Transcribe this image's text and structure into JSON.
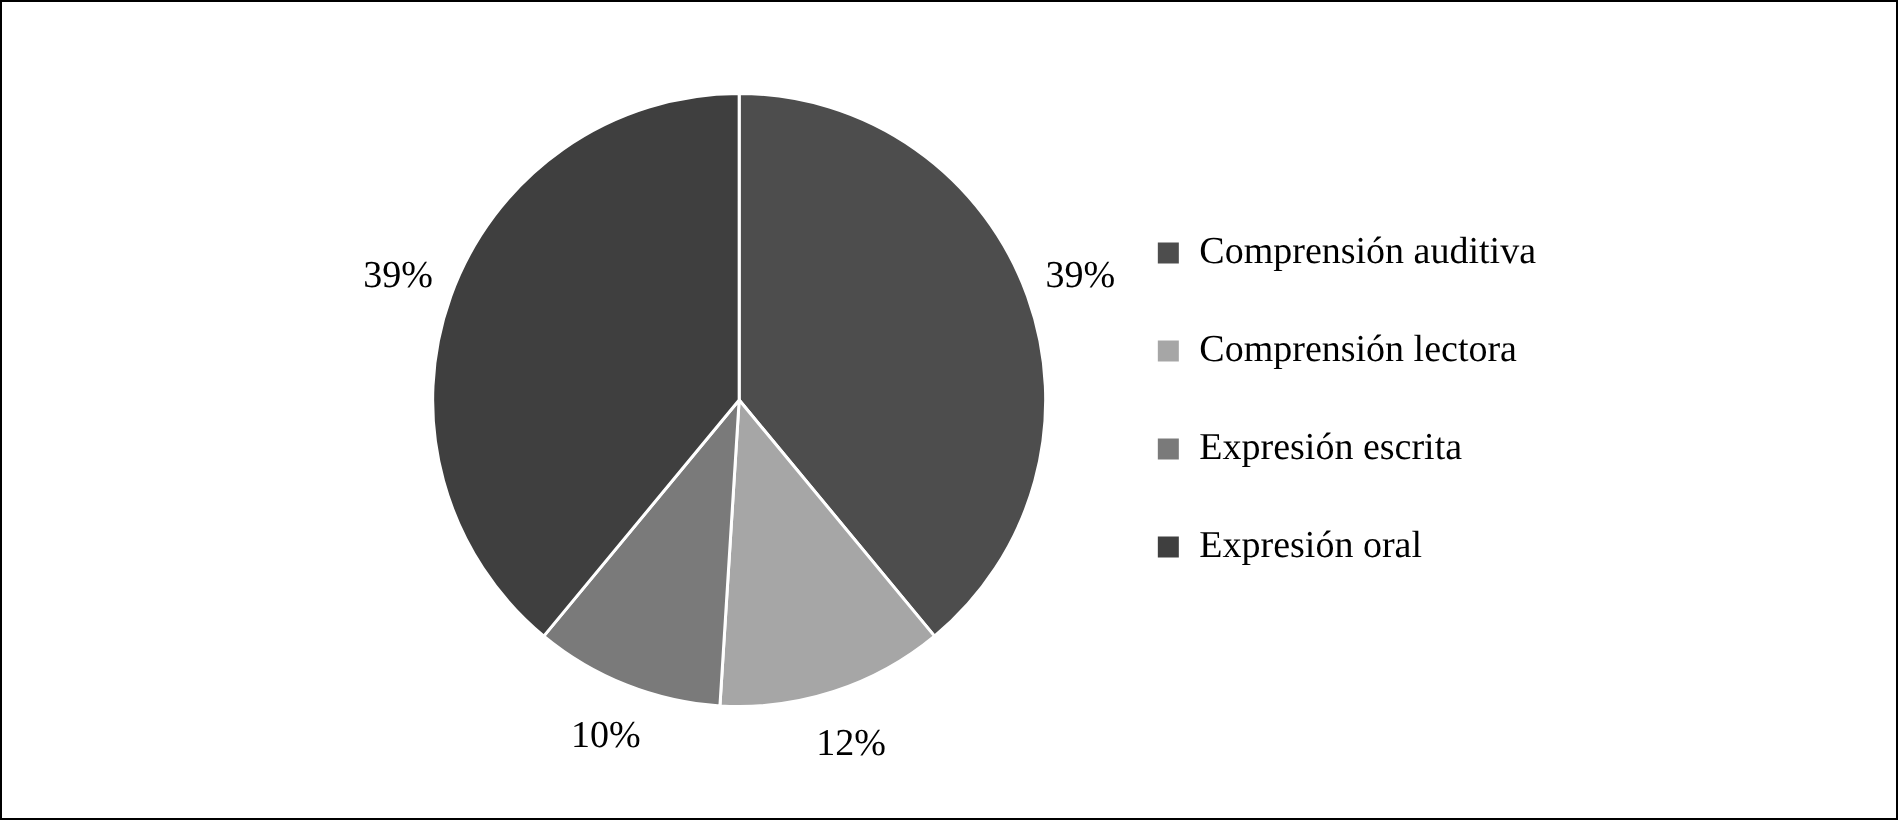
{
  "chart_data": {
    "type": "pie",
    "categories": [
      "Comprensión auditiva",
      "Comprensión lectora",
      "Expresión escrita",
      "Expresión oral"
    ],
    "values": [
      39,
      12,
      10,
      39
    ],
    "value_labels": [
      "39%",
      "12%",
      "10%",
      "39%"
    ],
    "colors": [
      "#4d4d4d",
      "#a6a6a6",
      "#7a7a7a",
      "#3f3f3f"
    ],
    "legend": "right"
  }
}
